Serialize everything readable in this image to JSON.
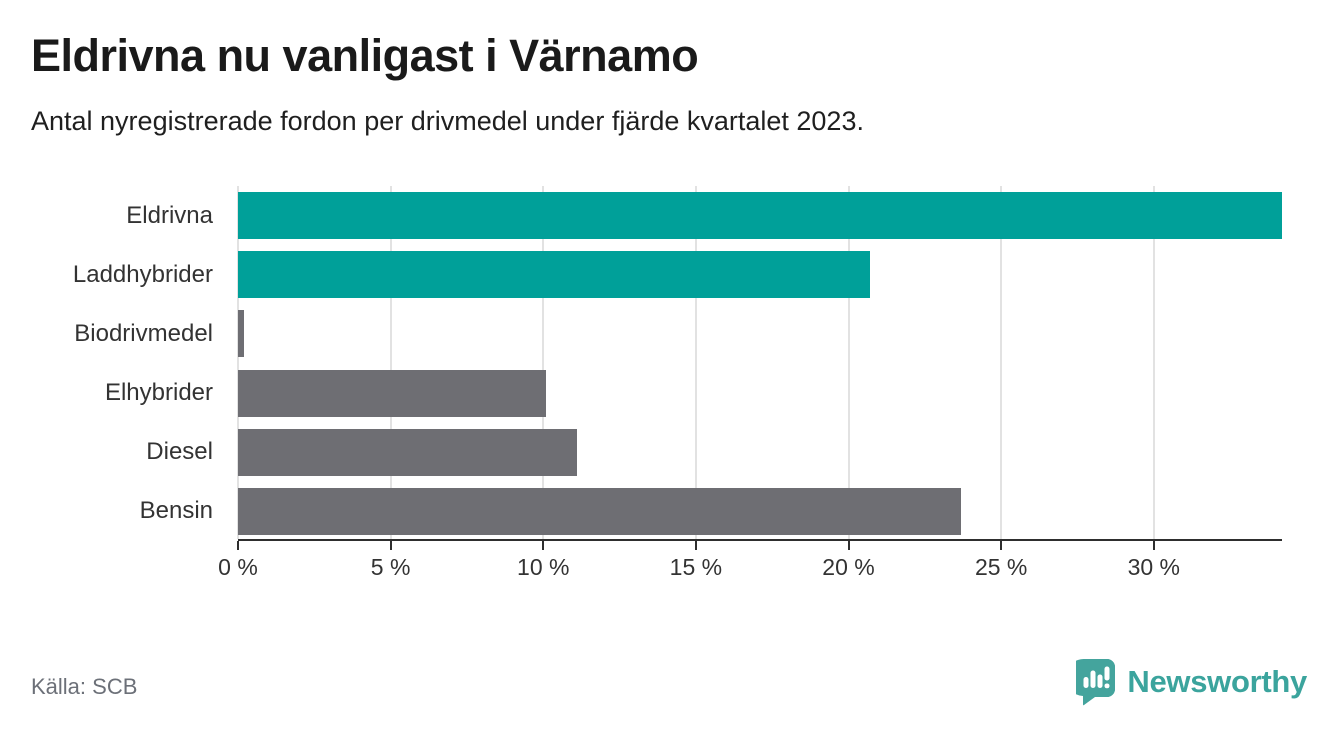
{
  "header": {
    "title": "Eldrivna nu vanligast i Värnamo",
    "subtitle": "Antal nyregistrerade fordon per drivmedel under fjärde kvartalet 2023."
  },
  "chart_data": {
    "type": "bar",
    "orientation": "horizontal",
    "categories": [
      "Eldrivna",
      "Laddhybrider",
      "Biodrivmedel",
      "Elhybrider",
      "Diesel",
      "Bensin"
    ],
    "values": [
      34.2,
      20.7,
      0.2,
      10.1,
      11.1,
      23.7
    ],
    "unit": "%",
    "xlim": [
      0,
      34.2
    ],
    "x_ticks": [
      0,
      5,
      10,
      15,
      20,
      25,
      30
    ],
    "x_tick_labels": [
      "0 %",
      "5 %",
      "10 %",
      "15 %",
      "20 %",
      "25 %",
      "30 %"
    ],
    "bar_colors": [
      "#00a099",
      "#00a099",
      "#6e6e73",
      "#6e6e73",
      "#6e6e73",
      "#6e6e73"
    ],
    "highlight_color": "#00a099",
    "default_color": "#6e6e73",
    "grid": true,
    "legend": "none",
    "title": "Eldrivna nu vanligast i Värnamo",
    "xlabel": "",
    "ylabel": ""
  },
  "footer": {
    "source": "Källa: SCB",
    "brand": "Newsworthy",
    "brand_color": "#3ba49d",
    "brand_icon": "speech-bubble-bar-chart"
  }
}
